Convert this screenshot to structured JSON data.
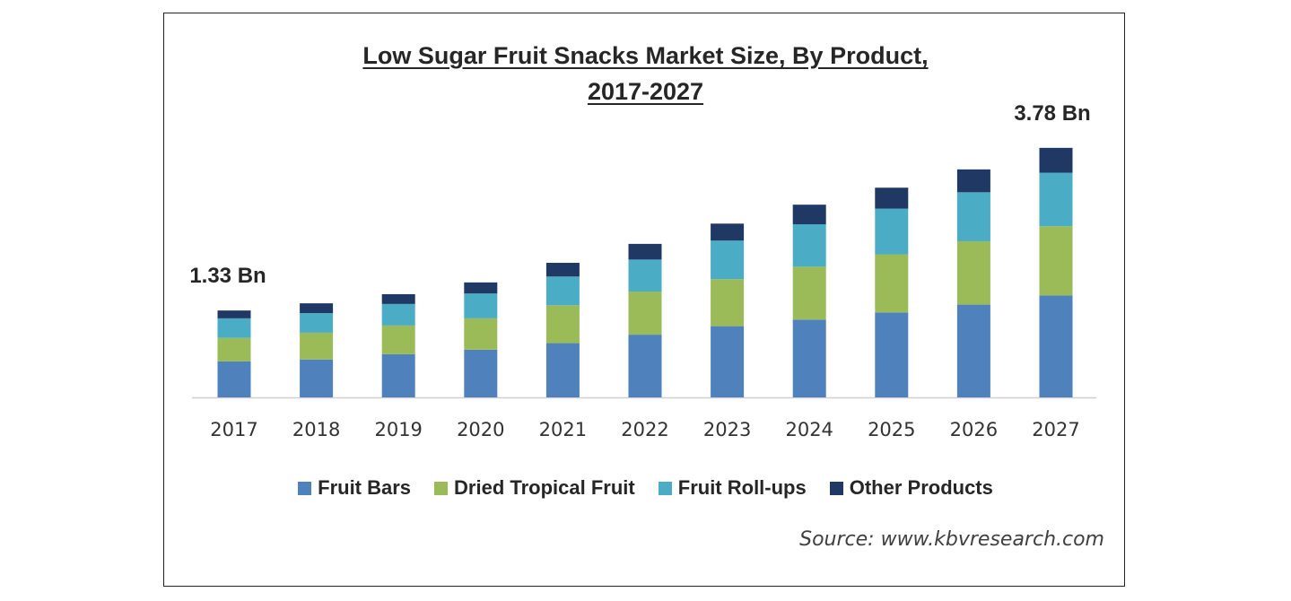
{
  "chart_data": {
    "type": "bar",
    "stacked": true,
    "title_line1": "Low Sugar Fruit Snacks Market Size, By Product,",
    "title_line2": "2017-2027",
    "categories": [
      "2017",
      "2018",
      "2019",
      "2020",
      "2021",
      "2022",
      "2023",
      "2024",
      "2025",
      "2026",
      "2027"
    ],
    "series": [
      {
        "name": "Fruit Bars",
        "color": "#4f81bd",
        "values": [
          0.55,
          0.58,
          0.66,
          0.73,
          0.83,
          0.96,
          1.09,
          1.19,
          1.3,
          1.42,
          1.56
        ]
      },
      {
        "name": "Dried Tropical Fruit",
        "color": "#9bbb59",
        "values": [
          0.36,
          0.41,
          0.44,
          0.48,
          0.58,
          0.66,
          0.72,
          0.81,
          0.89,
          0.97,
          1.06
        ]
      },
      {
        "name": "Fruit Roll-ups",
        "color": "#4bacc6",
        "values": [
          0.3,
          0.3,
          0.33,
          0.38,
          0.44,
          0.49,
          0.59,
          0.65,
          0.7,
          0.75,
          0.82
        ]
      },
      {
        "name": "Other Products",
        "color": "#1f3864",
        "values": [
          0.12,
          0.15,
          0.15,
          0.17,
          0.21,
          0.24,
          0.26,
          0.3,
          0.32,
          0.35,
          0.38
        ]
      }
    ],
    "annotations": [
      {
        "category": "2017",
        "text": "1.33 Bn"
      },
      {
        "category": "2027",
        "text": "3.78 Bn"
      }
    ],
    "ylim": [
      0,
      3.9
    ],
    "grid": false,
    "legend_position": "bottom",
    "source": "Source: www.kbvresearch.com"
  }
}
